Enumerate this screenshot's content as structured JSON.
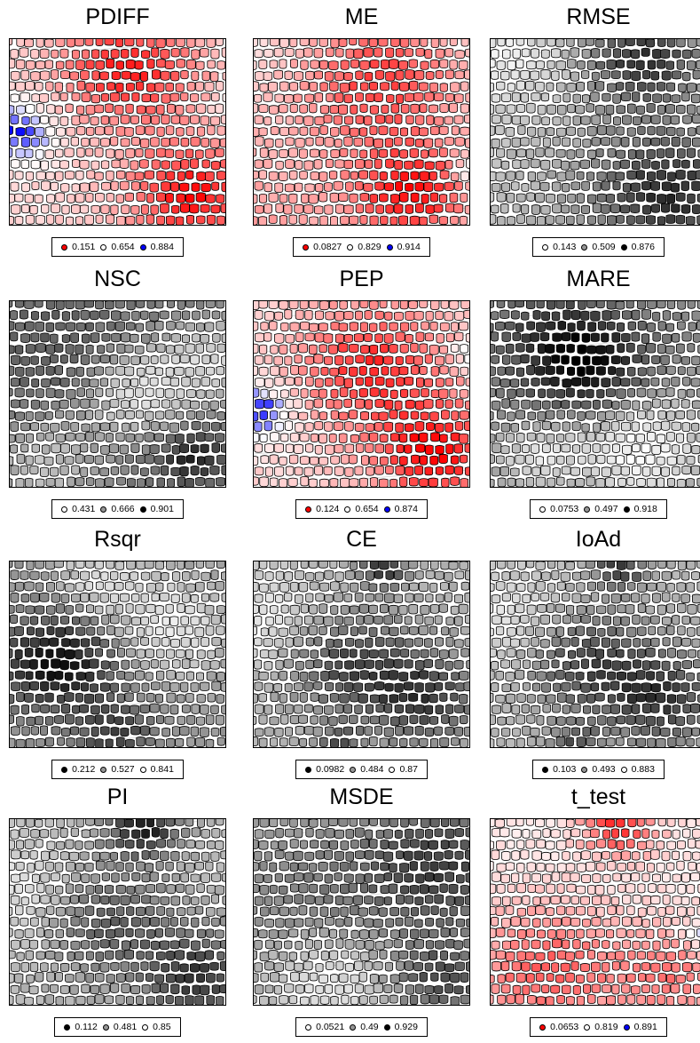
{
  "panels": [
    {
      "title": "PDIFF",
      "palette": "rwb",
      "pattern": "pdiff",
      "legend": [
        {
          "label": "0.151",
          "color": "#ff0000"
        },
        {
          "label": "0.654",
          "color": "#ffffff"
        },
        {
          "label": "0.884",
          "color": "#0000ff"
        }
      ]
    },
    {
      "title": "ME",
      "palette": "rwb",
      "pattern": "me",
      "legend": [
        {
          "label": "0.0827",
          "color": "#ff0000"
        },
        {
          "label": "0.829",
          "color": "#ffffff"
        },
        {
          "label": "0.914",
          "color": "#0000ff"
        }
      ]
    },
    {
      "title": "RMSE",
      "palette": "wgb",
      "pattern": "rmse",
      "legend": [
        {
          "label": "0.143",
          "color": "#ffffff"
        },
        {
          "label": "0.509",
          "color": "#969696"
        },
        {
          "label": "0.876",
          "color": "#000000"
        }
      ]
    },
    {
      "title": "NSC",
      "palette": "wgb",
      "pattern": "nsc",
      "legend": [
        {
          "label": "0.431",
          "color": "#ffffff"
        },
        {
          "label": "0.666",
          "color": "#969696"
        },
        {
          "label": "0.901",
          "color": "#000000"
        }
      ]
    },
    {
      "title": "PEP",
      "palette": "rwb",
      "pattern": "pep",
      "legend": [
        {
          "label": "0.124",
          "color": "#ff0000"
        },
        {
          "label": "0.654",
          "color": "#ffffff"
        },
        {
          "label": "0.874",
          "color": "#0000ff"
        }
      ]
    },
    {
      "title": "MARE",
      "palette": "wgb",
      "pattern": "mare",
      "legend": [
        {
          "label": "0.0753",
          "color": "#ffffff"
        },
        {
          "label": "0.497",
          "color": "#969696"
        },
        {
          "label": "0.918",
          "color": "#000000"
        }
      ]
    },
    {
      "title": "Rsqr",
      "palette": "bgw",
      "pattern": "rsqr",
      "legend": [
        {
          "label": "0.212",
          "color": "#000000"
        },
        {
          "label": "0.527",
          "color": "#969696"
        },
        {
          "label": "0.841",
          "color": "#ffffff"
        }
      ]
    },
    {
      "title": "CE",
      "palette": "bgw",
      "pattern": "ce",
      "legend": [
        {
          "label": "0.0982",
          "color": "#000000"
        },
        {
          "label": "0.484",
          "color": "#969696"
        },
        {
          "label": "0.87",
          "color": "#ffffff"
        }
      ]
    },
    {
      "title": "IoAd",
      "palette": "bgw",
      "pattern": "ce",
      "legend": [
        {
          "label": "0.103",
          "color": "#000000"
        },
        {
          "label": "0.493",
          "color": "#969696"
        },
        {
          "label": "0.883",
          "color": "#ffffff"
        }
      ]
    },
    {
      "title": "PI",
      "palette": "bgw",
      "pattern": "pi",
      "legend": [
        {
          "label": "0.112",
          "color": "#000000"
        },
        {
          "label": "0.481",
          "color": "#969696"
        },
        {
          "label": "0.85",
          "color": "#ffffff"
        }
      ]
    },
    {
      "title": "MSDE",
      "palette": "wgb",
      "pattern": "msde",
      "legend": [
        {
          "label": "0.0521",
          "color": "#ffffff"
        },
        {
          "label": "0.49",
          "color": "#969696"
        },
        {
          "label": "0.929",
          "color": "#000000"
        }
      ]
    },
    {
      "title": "t_test",
      "palette": "rwb",
      "pattern": "ttest",
      "legend": [
        {
          "label": "0.0653",
          "color": "#ff0000"
        },
        {
          "label": "0.819",
          "color": "#ffffff"
        },
        {
          "label": "0.891",
          "color": "#0000ff"
        }
      ]
    }
  ],
  "chart_data": {
    "type": "heatmap",
    "grid": "12 panels (4 rows x 3 columns) of self-organizing-map style component planes",
    "panels": [
      "PDIFF",
      "ME",
      "RMSE",
      "NSC",
      "PEP",
      "MARE",
      "Rsqr",
      "CE",
      "IoAd",
      "PI",
      "MSDE",
      "t_test"
    ]
  }
}
